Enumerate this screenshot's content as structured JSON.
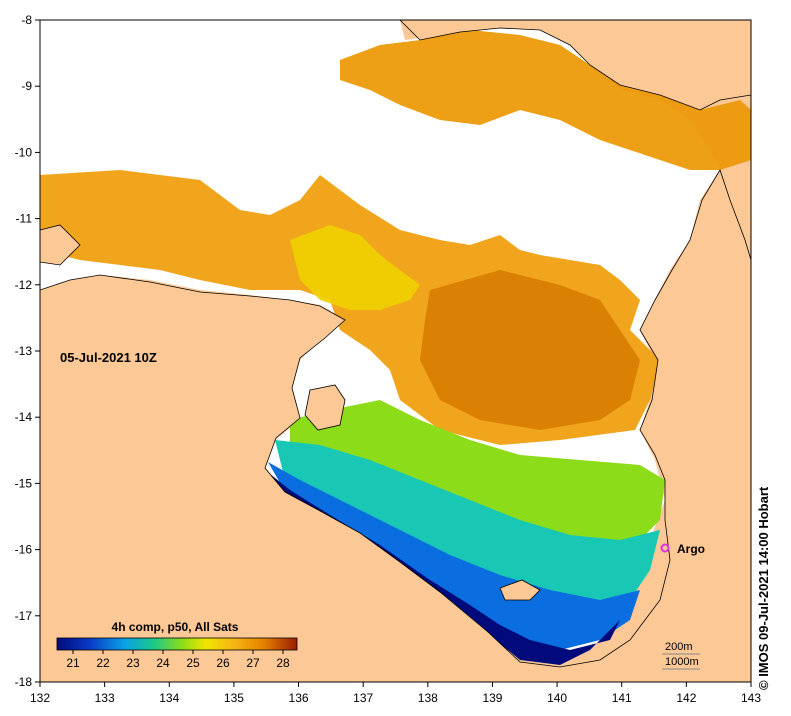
{
  "map": {
    "date_label": "05-Jul-2021 10Z",
    "credit": "© IMOS 09-Jul-2021 14:00 Hobart",
    "x_ticks": [
      "132",
      "133",
      "134",
      "135",
      "136",
      "137",
      "138",
      "139",
      "140",
      "141",
      "142",
      "143"
    ],
    "y_ticks": [
      "-8",
      "-9",
      "-10",
      "-11",
      "-12",
      "-13",
      "-14",
      "-15",
      "-16",
      "-17",
      "-18"
    ],
    "lon_range": [
      132,
      143
    ],
    "lat_range": [
      -18,
      -8
    ],
    "marker": {
      "label": "Argo",
      "lon": 141.7,
      "lat": -16.0,
      "color": "#e030e0"
    },
    "legend": {
      "title": "4h comp, p50, All Sats",
      "ticks": [
        "21",
        "22",
        "23",
        "24",
        "25",
        "26",
        "27",
        "28"
      ]
    },
    "contour_labels": [
      "200m",
      "1000m"
    ],
    "colors": {
      "land": "#fcc896",
      "no_data": "#ffffff",
      "sst_21": "#000a7a",
      "sst_28": "#9a1c00"
    }
  }
}
